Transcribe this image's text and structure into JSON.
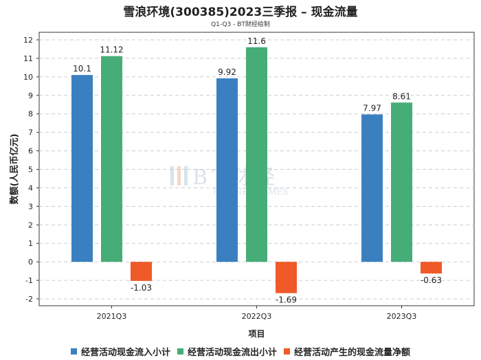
{
  "chart_data": {
    "type": "bar",
    "title": "雪浪环境(300385)2023三季报 – 现金流量",
    "subtitle": "Q1-Q3 - BT财经绘制",
    "xlabel": "项目",
    "ylabel": "数额(人民币亿元)",
    "categories": [
      "2021Q3",
      "2022Q3",
      "2023Q3"
    ],
    "ylim": [
      -2,
      12
    ],
    "yticks": [
      -2,
      -1,
      0,
      1,
      2,
      3,
      4,
      5,
      6,
      7,
      8,
      9,
      10,
      11,
      12
    ],
    "grid": true,
    "legend_position": "bottom",
    "series": [
      {
        "name": "经营活动现金流入小计",
        "color": "#3a80c1",
        "values": [
          10.1,
          9.92,
          7.97
        ],
        "labels": [
          "10.1",
          "9.92",
          "7.97"
        ]
      },
      {
        "name": "经营活动现金流出小计",
        "color": "#46ac78",
        "values": [
          11.12,
          11.6,
          8.61
        ],
        "labels": [
          "11.12",
          "11.6",
          "8.61"
        ]
      },
      {
        "name": "经营活动产生的现金流量净额",
        "color": "#f05a28",
        "values": [
          -1.03,
          -1.69,
          -0.63
        ],
        "labels": [
          "-1.03",
          "-1.69",
          "-0.63"
        ]
      }
    ]
  },
  "watermark": {
    "main": "BT财经",
    "sub": "BUSINESSTIMES"
  }
}
